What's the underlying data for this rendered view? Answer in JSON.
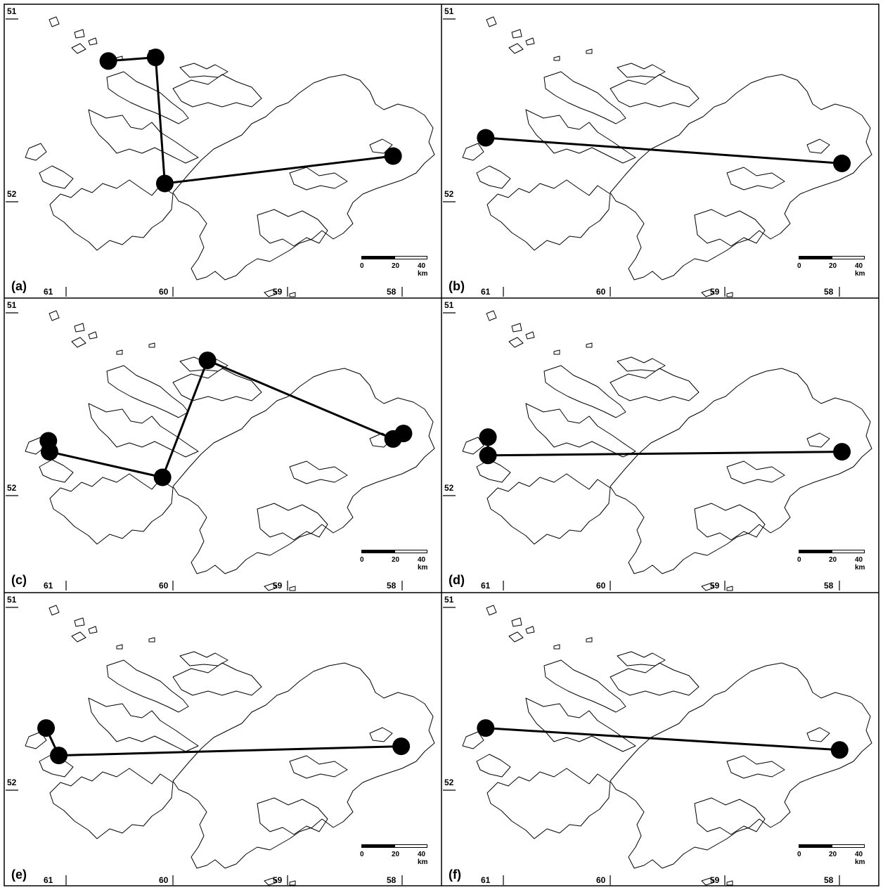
{
  "lat_labels": [
    "51",
    "52"
  ],
  "lon_labels": [
    "61",
    "60",
    "59",
    "58"
  ],
  "scale": {
    "ticks": [
      "0",
      "20",
      "40 km"
    ]
  },
  "panels": [
    {
      "id": "a",
      "label": "(a)",
      "route": [
        [
          -60.53,
          51.23
        ],
        [
          -60.12,
          51.21
        ],
        [
          -60.04,
          51.9
        ],
        [
          -58.06,
          51.75
        ]
      ]
    },
    {
      "id": "b",
      "label": "(b)",
      "route": [
        [
          -61.05,
          51.65
        ],
        [
          -57.96,
          51.79
        ]
      ]
    },
    {
      "id": "c",
      "label": "(c)",
      "route": [
        [
          -61.05,
          51.7
        ],
        [
          -61.04,
          51.76
        ],
        [
          -60.06,
          51.9
        ],
        [
          -59.67,
          51.26
        ],
        [
          -58.06,
          51.69
        ],
        [
          -57.97,
          51.66
        ]
      ]
    },
    {
      "id": "d",
      "label": "(d)",
      "route": [
        [
          -61.03,
          51.68
        ],
        [
          -61.03,
          51.78
        ],
        [
          -57.96,
          51.76
        ]
      ]
    },
    {
      "id": "e",
      "label": "(e)",
      "route": [
        [
          -61.07,
          51.66
        ],
        [
          -60.96,
          51.81
        ],
        [
          -57.99,
          51.76
        ]
      ]
    },
    {
      "id": "f",
      "label": "(f)",
      "route": [
        [
          -61.05,
          51.66
        ],
        [
          -57.98,
          51.78
        ]
      ]
    }
  ]
}
